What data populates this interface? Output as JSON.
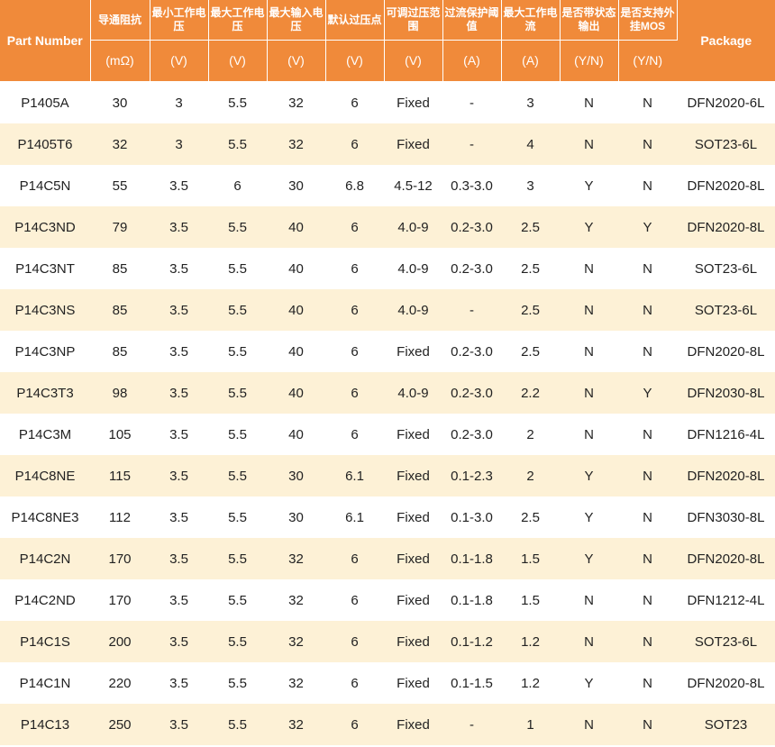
{
  "table": {
    "headers": {
      "part_number": "Part Number",
      "package": "Package",
      "cols": [
        {
          "label": "导通阻抗",
          "unit": "(mΩ)"
        },
        {
          "label": "最小工作电压",
          "unit": "(V)"
        },
        {
          "label": "最大工作电压",
          "unit": "(V)"
        },
        {
          "label": "最大输入电压",
          "unit": "(V)"
        },
        {
          "label": "默认过压点",
          "unit": "(V)"
        },
        {
          "label": "可调过压范围",
          "unit": "(V)"
        },
        {
          "label": "过流保护阈值",
          "unit": "(A)"
        },
        {
          "label": "最大工作电流",
          "unit": "(A)"
        },
        {
          "label": "是否带状态输出",
          "unit": "(Y/N)"
        },
        {
          "label": "是否支持外挂MOS",
          "unit": "(Y/N)"
        }
      ]
    },
    "rows": [
      [
        "P1405A",
        "30",
        "3",
        "5.5",
        "32",
        "6",
        "Fixed",
        "-",
        "3",
        "N",
        "N",
        "DFN2020-6L"
      ],
      [
        "P1405T6",
        "32",
        "3",
        "5.5",
        "32",
        "6",
        "Fixed",
        "-",
        "4",
        "N",
        "N",
        "SOT23-6L"
      ],
      [
        "P14C5N",
        "55",
        "3.5",
        "6",
        "30",
        "6.8",
        "4.5-12",
        "0.3-3.0",
        "3",
        "Y",
        "N",
        "DFN2020-8L"
      ],
      [
        "P14C3ND",
        "79",
        "3.5",
        "5.5",
        "40",
        "6",
        "4.0-9",
        "0.2-3.0",
        "2.5",
        "Y",
        "Y",
        "DFN2020-8L"
      ],
      [
        "P14C3NT",
        "85",
        "3.5",
        "5.5",
        "40",
        "6",
        "4.0-9",
        "0.2-3.0",
        "2.5",
        "N",
        "N",
        "SOT23-6L"
      ],
      [
        "P14C3NS",
        "85",
        "3.5",
        "5.5",
        "40",
        "6",
        "4.0-9",
        "-",
        "2.5",
        "N",
        "N",
        "SOT23-6L"
      ],
      [
        "P14C3NP",
        "85",
        "3.5",
        "5.5",
        "40",
        "6",
        "Fixed",
        "0.2-3.0",
        "2.5",
        "N",
        "N",
        "DFN2020-8L"
      ],
      [
        "P14C3T3",
        "98",
        "3.5",
        "5.5",
        "40",
        "6",
        "4.0-9",
        "0.2-3.0",
        "2.2",
        "N",
        "Y",
        "DFN2030-8L"
      ],
      [
        "P14C3M",
        "105",
        "3.5",
        "5.5",
        "40",
        "6",
        "Fixed",
        "0.2-3.0",
        "2",
        "N",
        "N",
        "DFN1216-4L"
      ],
      [
        "P14C8NE",
        "115",
        "3.5",
        "5.5",
        "30",
        "6.1",
        "Fixed",
        "0.1-2.3",
        "2",
        "Y",
        "N",
        "DFN2020-8L"
      ],
      [
        "P14C8NE3",
        "112",
        "3.5",
        "5.5",
        "30",
        "6.1",
        "Fixed",
        "0.1-3.0",
        "2.5",
        "Y",
        "N",
        "DFN3030-8L"
      ],
      [
        "P14C2N",
        "170",
        "3.5",
        "5.5",
        "32",
        "6",
        "Fixed",
        "0.1-1.8",
        "1.5",
        "Y",
        "N",
        "DFN2020-8L"
      ],
      [
        "P14C2ND",
        "170",
        "3.5",
        "5.5",
        "32",
        "6",
        "Fixed",
        "0.1-1.8",
        "1.5",
        "N",
        "N",
        "DFN1212-4L"
      ],
      [
        "P14C1S",
        "200",
        "3.5",
        "5.5",
        "32",
        "6",
        "Fixed",
        "0.1-1.2",
        "1.2",
        "N",
        "N",
        "SOT23-6L"
      ],
      [
        "P14C1N",
        "220",
        "3.5",
        "5.5",
        "32",
        "6",
        "Fixed",
        "0.1-1.5",
        "1.2",
        "Y",
        "N",
        "DFN2020-8L"
      ],
      [
        "P14C13",
        "250",
        "3.5",
        "5.5",
        "32",
        "6",
        "Fixed",
        "-",
        "1",
        "N",
        "N",
        "SOT23"
      ]
    ]
  },
  "colors": {
    "header_bg": "#f08a3a",
    "stripe_bg": "#fdf1d6"
  }
}
